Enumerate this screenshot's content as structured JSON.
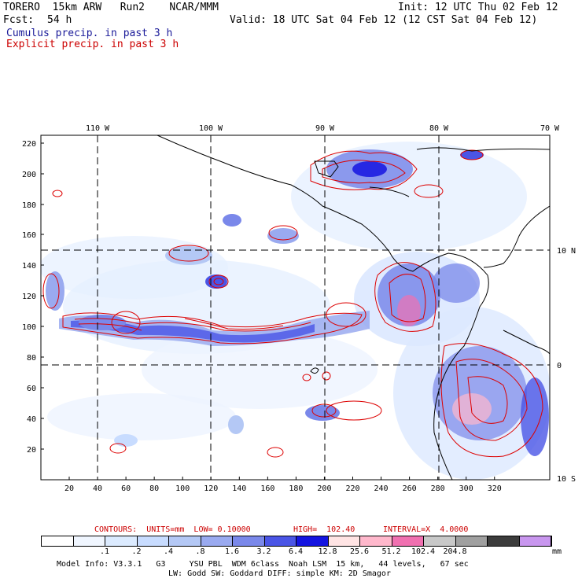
{
  "header": {
    "model_line": "TORERO  15km ARW   Run2    NCAR/MMM",
    "init_line": "Init: 12 UTC Thu 02 Feb 12",
    "fcst_label": "Fcst:",
    "fcst_value": "54 h",
    "valid_line": "Valid: 18 UTC Sat 04 Feb 12 (12 CST Sat 04 Feb 12)",
    "field1": "Cumulus precip. in past 3 h",
    "field2": "Explicit precip. in past 3 h",
    "field1_color": "#1a1a99",
    "field2_color": "#cc0000"
  },
  "map": {
    "top_labels": [
      "110 W",
      "100 W",
      "90 W",
      "80 W",
      "70 W"
    ],
    "right_labels": [
      "10 N",
      "0",
      "10 S"
    ],
    "y_ticks": [
      "220",
      "200",
      "180",
      "160",
      "140",
      "120",
      "100",
      "80",
      "60",
      "40",
      "20"
    ],
    "x_ticks": [
      "20",
      "40",
      "60",
      "80",
      "100",
      "120",
      "140",
      "160",
      "180",
      "200",
      "220",
      "240",
      "260",
      "280",
      "300",
      "320"
    ]
  },
  "contour_info": {
    "units_label": "CONTOURS:  UNITS=mm  LOW= 0.10000",
    "high_label": "HIGH=  102.40",
    "interval_label": "INTERVAL=X  4.0000",
    "color": "#cc0000"
  },
  "legend": {
    "unit": "mm",
    "colors": [
      "#ffffff",
      "#f0f6ff",
      "#dcebff",
      "#c8dcff",
      "#b4c8f5",
      "#9aaaf0",
      "#7a88ea",
      "#4a55e6",
      "#1414e0",
      "#ffe4e4",
      "#ffb8cc",
      "#f070b0",
      "#c8c8c8",
      "#a0a0a0",
      "#3c3c3c",
      "#c896ee"
    ],
    "labels": [
      ".1",
      ".2",
      ".4",
      ".8",
      "1.6",
      "3.2",
      "6.4",
      "12.8",
      "25.6",
      "51.2",
      "102.4",
      "204.8"
    ]
  },
  "footer": {
    "line1": "Model Info: V3.3.1   G3     YSU PBL  WDM 6class  Noah LSM  15 km,   44 levels,   67 sec",
    "line2": "LW: Godd SW: Goddard DIFF: simple KM: 2D Smagor"
  }
}
